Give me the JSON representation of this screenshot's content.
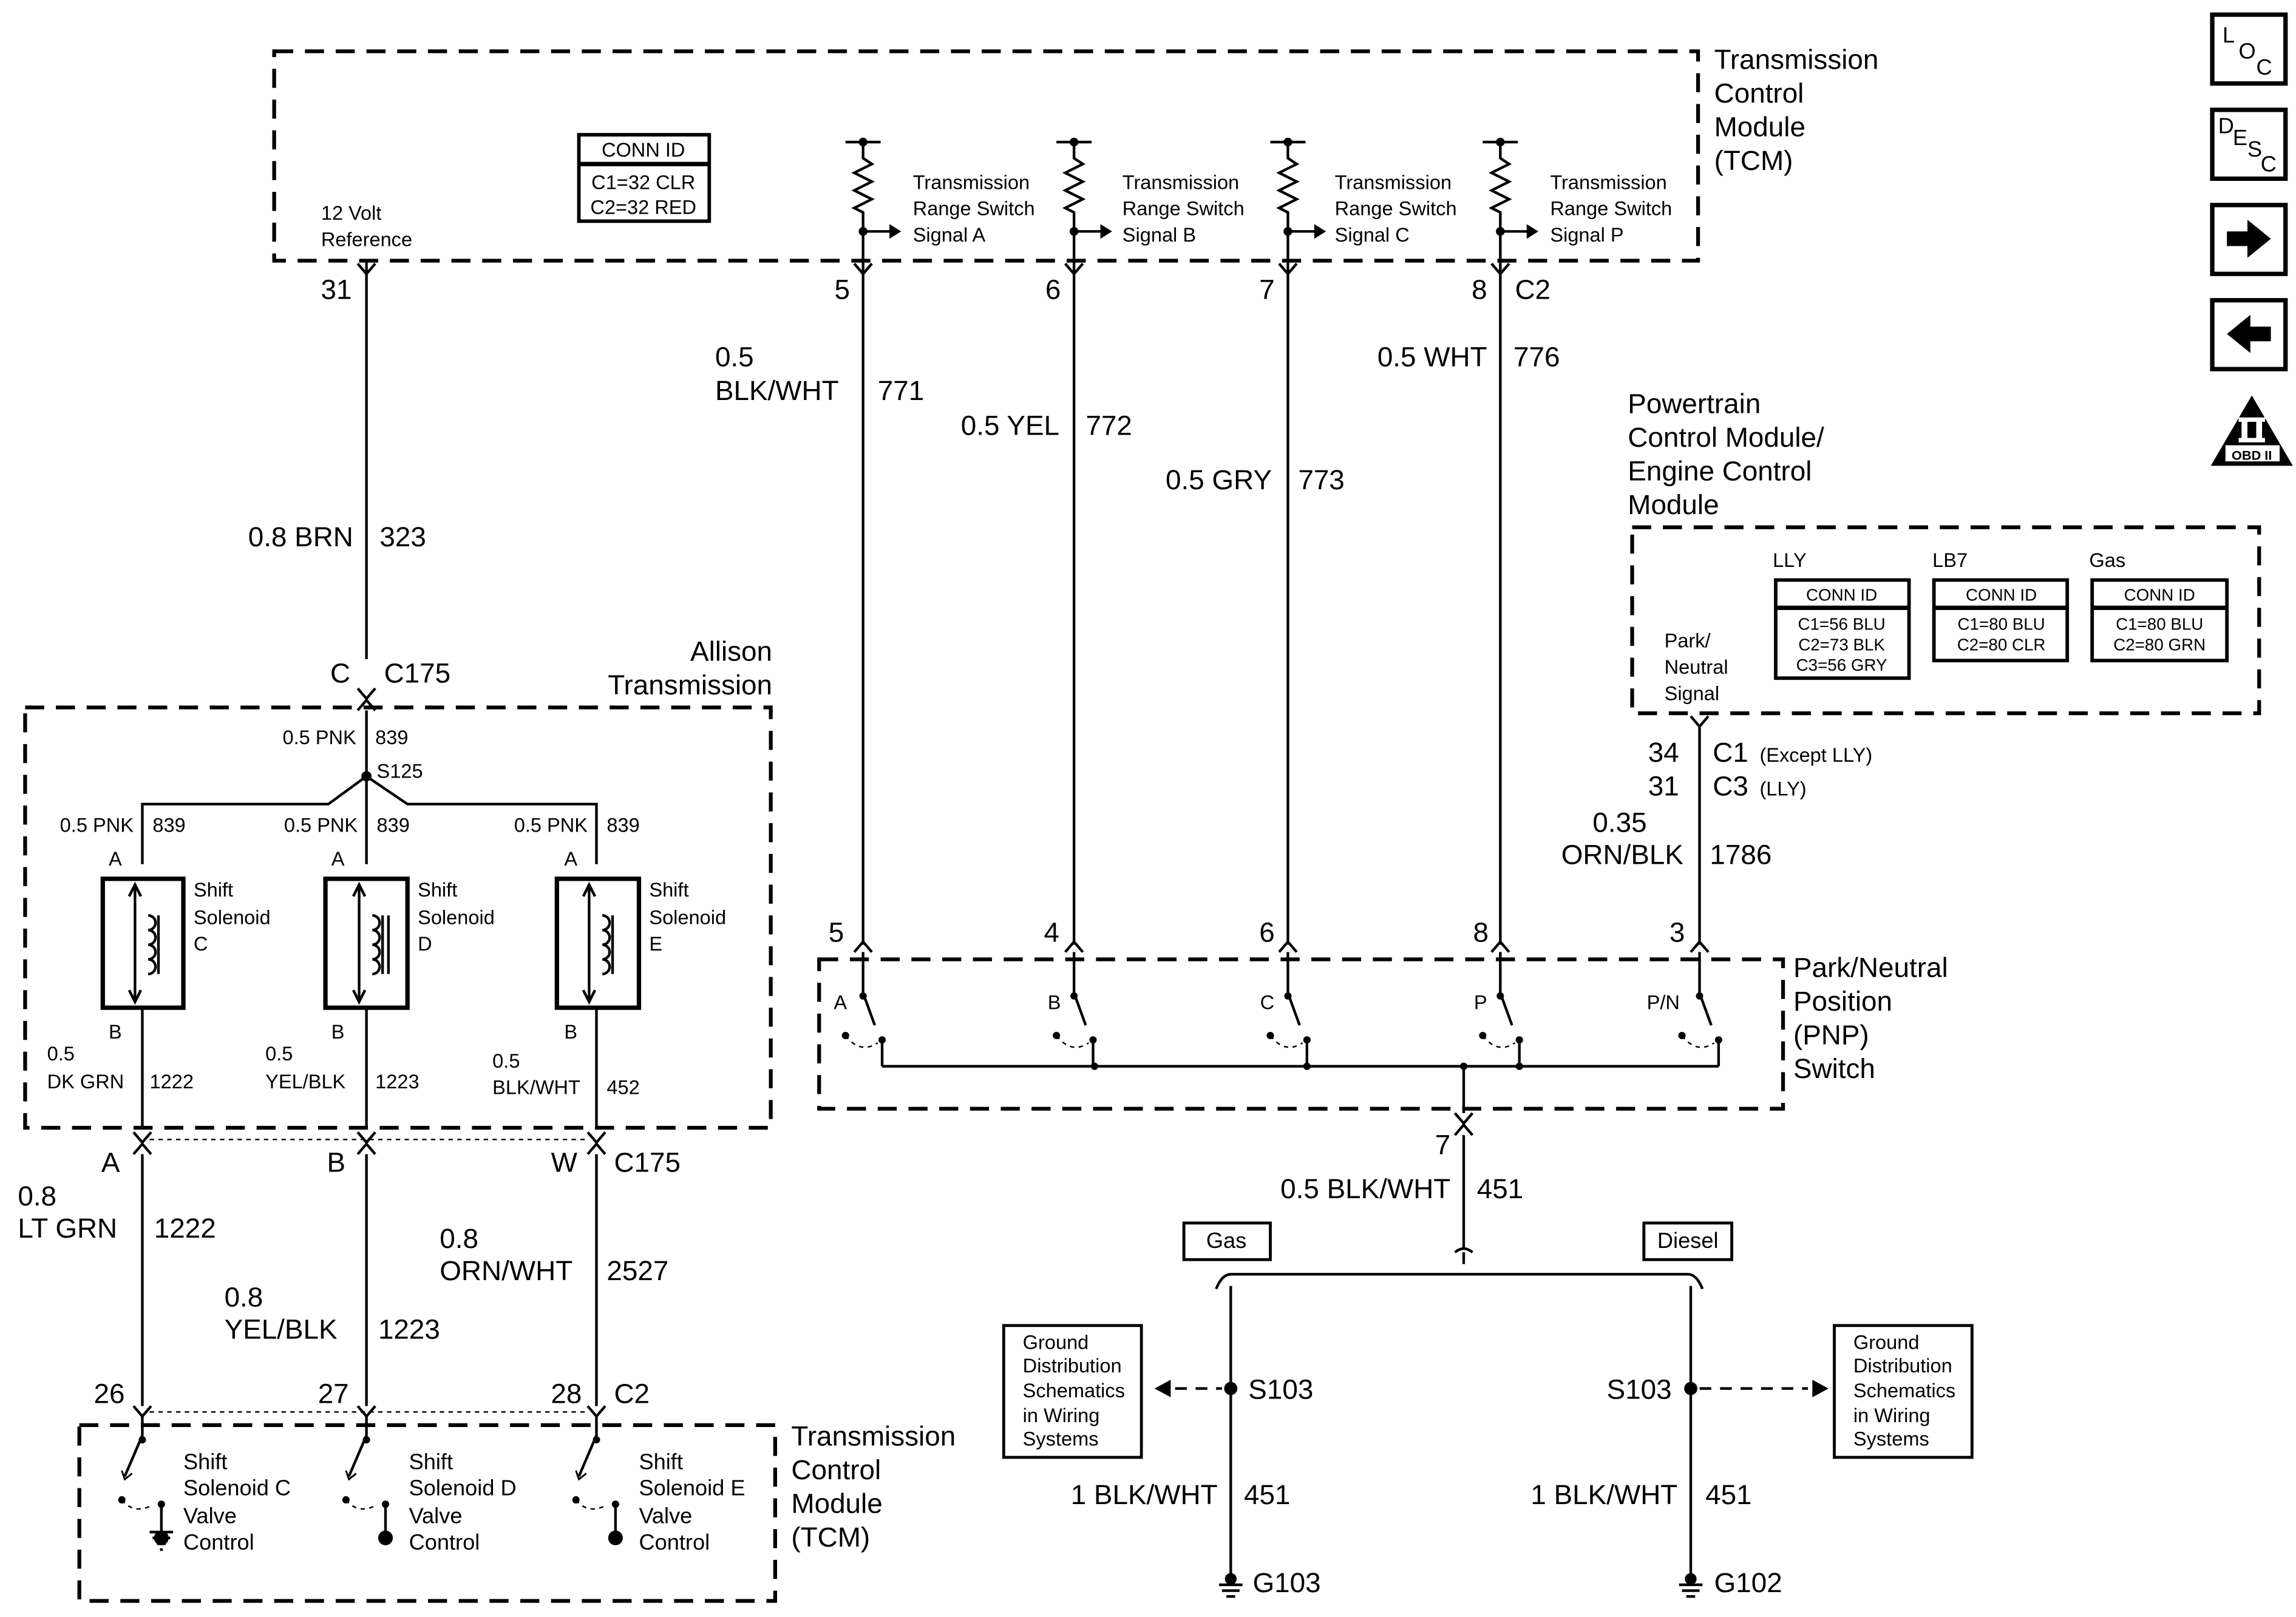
{
  "tcm_top": {
    "title": [
      "Transmission",
      "Control",
      "Module",
      "(TCM)"
    ],
    "conn_id": {
      "header": "CONN ID",
      "rows": [
        "C1=32 CLR",
        "C2=32 RED"
      ]
    },
    "ref_label": [
      "12 Volt",
      "Reference"
    ],
    "signals": [
      [
        "Transmission",
        "Range Switch",
        "Signal A"
      ],
      [
        "Transmission",
        "Range Switch",
        "Signal B"
      ],
      [
        "Transmission",
        "Range Switch",
        "Signal C"
      ],
      [
        "Transmission",
        "Range Switch",
        "Signal P"
      ]
    ],
    "pins": [
      "31",
      "5",
      "6",
      "7",
      "8"
    ],
    "connector": "C2"
  },
  "wires_top": {
    "w323": {
      "gauge_color": "0.8 BRN",
      "circuit": "323"
    },
    "w771": {
      "gauge": "0.5",
      "color": "BLK/WHT",
      "circuit": "771"
    },
    "w772": {
      "gauge_color": "0.5 YEL",
      "circuit": "772"
    },
    "w773": {
      "gauge_color": "0.5 GRY",
      "circuit": "773"
    },
    "w776": {
      "gauge_color": "0.5 WHT",
      "circuit": "776"
    }
  },
  "c175_top": {
    "pin": "C",
    "connector": "C175"
  },
  "allison": {
    "title": [
      "Allison",
      "Transmission"
    ],
    "feed": {
      "gauge_color": "0.5 PNK",
      "circuit": "839"
    },
    "splice": "S125",
    "solenoids": [
      {
        "feed": "0.5 PNK",
        "feed_circuit": "839",
        "pin_a": "A",
        "pin_b": "B",
        "label": [
          "Shift",
          "Solenoid",
          "C"
        ],
        "out_gauge": "0.5",
        "out_color": "DK GRN",
        "out_circuit": "1222"
      },
      {
        "feed": "0.5 PNK",
        "feed_circuit": "839",
        "pin_a": "A",
        "pin_b": "B",
        "label": [
          "Shift",
          "Solenoid",
          "D"
        ],
        "out_gauge": "0.5",
        "out_color": "YEL/BLK",
        "out_circuit": "1223"
      },
      {
        "feed": "0.5 PNK",
        "feed_circuit": "839",
        "pin_a": "A",
        "pin_b": "B",
        "label": [
          "Shift",
          "Solenoid",
          "E"
        ],
        "out_gauge": "0.5",
        "out_color": "BLK/WHT",
        "out_circuit": "452"
      }
    ]
  },
  "c175_bottom": {
    "pins": [
      "A",
      "B",
      "W"
    ],
    "connector": "C175"
  },
  "wires_mid": [
    {
      "gauge": "0.8",
      "color": "LT GRN",
      "circuit": "1222"
    },
    {
      "gauge": "0.8",
      "color": "YEL/BLK",
      "circuit": "1223"
    },
    {
      "gauge": "0.8",
      "color": "ORN/WHT",
      "circuit": "2527"
    }
  ],
  "tcm_bottom": {
    "pins": [
      "26",
      "27",
      "28"
    ],
    "connector": "C2",
    "title": [
      "Transmission",
      "Control",
      "Module",
      "(TCM)"
    ],
    "controls": [
      [
        "Shift",
        "Solenoid C",
        "Valve",
        "Control"
      ],
      [
        "Shift",
        "Solenoid D",
        "Valve",
        "Control"
      ],
      [
        "Shift",
        "Solenoid E",
        "Valve",
        "Control"
      ]
    ]
  },
  "pcm": {
    "title": [
      "Powertrain",
      "Control Module/",
      "Engine Control",
      "Module"
    ],
    "signal_label": [
      "Park/",
      "Neutral",
      "Signal"
    ],
    "conn_tables": [
      {
        "variant": "LLY",
        "header": "CONN ID",
        "rows": [
          "C1=56 BLU",
          "C2=73 BLK",
          "C3=56 GRY"
        ]
      },
      {
        "variant": "LB7",
        "header": "CONN ID",
        "rows": [
          "C1=80 BLU",
          "C2=80 CLR"
        ]
      },
      {
        "variant": "Gas",
        "header": "CONN ID",
        "rows": [
          "C1=80 BLU",
          "C2=80 GRN"
        ]
      }
    ],
    "pins": [
      {
        "pin": "34",
        "connector": "C1",
        "note": "(Except LLY)"
      },
      {
        "pin": "31",
        "connector": "C3",
        "note": "(LLY)"
      }
    ],
    "wire": {
      "gauge": "0.35",
      "color": "ORN/BLK",
      "circuit": "1786"
    }
  },
  "pnp": {
    "title": [
      "Park/Neutral",
      "Position",
      "(PNP)",
      "Switch"
    ],
    "pins": [
      "5",
      "4",
      "6",
      "8",
      "3"
    ],
    "switch_labels": [
      "A",
      "B",
      "C",
      "P",
      "P/N"
    ],
    "out_pin": "7",
    "out_wire": {
      "gauge_color": "0.5 BLK/WHT",
      "circuit": "451"
    }
  },
  "ground": {
    "gas_label": "Gas",
    "diesel_label": "Diesel",
    "gas": {
      "splice": "S103",
      "gauge_color": "1 BLK/WHT",
      "circuit": "451",
      "ground": "G103"
    },
    "diesel": {
      "splice": "S103",
      "gauge_color": "1 BLK/WHT",
      "circuit": "451",
      "ground": "G102"
    },
    "ref_box": [
      "Ground",
      "Distribution",
      "Schematics",
      "in Wiring",
      "Systems"
    ]
  },
  "nav_icons": {
    "loc": [
      "L",
      "O",
      "C"
    ],
    "desc": [
      "D",
      "E",
      "S",
      "C"
    ],
    "next": "arrow-right-icon",
    "prev": "arrow-left-icon",
    "obd": {
      "numeral": "II",
      "label": "OBD II"
    }
  }
}
